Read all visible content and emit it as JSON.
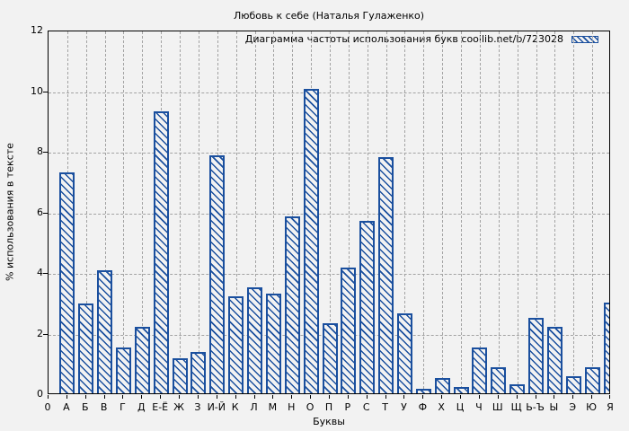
{
  "colors": {
    "background": "#f2f2f2",
    "bar_color": "#1a4f9e",
    "grid_color": "#a3a3a3",
    "axis_color": "#000000"
  },
  "chart_data": {
    "type": "bar",
    "title": "Любовь к себе (Наталья Гулаженко)",
    "legend_label": "Диаграмма частоты использования букв coollib.net/b/723028",
    "legend_position": "top-right",
    "xlabel": "Буквы",
    "ylabel": "% использования в тексте",
    "x_origin_label": "0",
    "ylim": [
      0,
      12
    ],
    "yticks": [
      0,
      2,
      4,
      6,
      8,
      10,
      12
    ],
    "grid": true,
    "bar_style": "blue diagonal hatch, hollow fill",
    "categories": [
      "А",
      "Б",
      "В",
      "Г",
      "Д",
      "Е-Ё",
      "Ж",
      "З",
      "И-Й",
      "К",
      "Л",
      "М",
      "Н",
      "О",
      "П",
      "Р",
      "С",
      "Т",
      "У",
      "Ф",
      "Х",
      "Ц",
      "Ч",
      "Ш",
      "Щ",
      "Ь-Ъ",
      "Ы",
      "Э",
      "Ю",
      "Я"
    ],
    "values": [
      7.3,
      2.95,
      4.05,
      1.5,
      2.2,
      9.3,
      1.15,
      1.35,
      7.85,
      3.2,
      3.5,
      3.3,
      5.85,
      10.05,
      2.3,
      4.15,
      5.7,
      7.8,
      2.65,
      0.15,
      0.5,
      0.2,
      1.5,
      0.85,
      0.3,
      2.5,
      2.2,
      0.55,
      0.85,
      3.0
    ]
  }
}
